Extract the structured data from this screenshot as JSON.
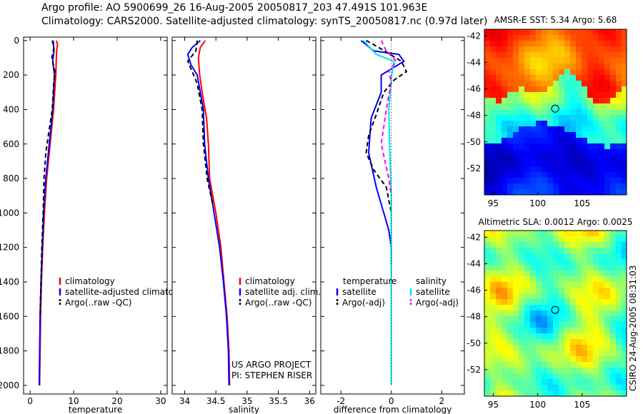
{
  "header": {
    "line1": "Argo profile: AO 5900699_26 16-Aug-2005 20050817_203 47.491S 101.963E",
    "line2": "Climatology: CARS2000. Satellite-adjusted climatology: synTS_20050817.nc (0.97d later)"
  },
  "colors": {
    "red": "#ff0000",
    "blue": "#0000ff",
    "black": "#000000",
    "cyan": "#00e5e5",
    "magenta": "#ff00ff"
  },
  "chart_data": [
    {
      "type": "line",
      "name": "temperature",
      "xlabel": "temperature",
      "ylabel": "",
      "xlim": [
        -1.5,
        31.5
      ],
      "ylim": [
        2050,
        -20
      ],
      "xticks": [
        0,
        10,
        20,
        30
      ],
      "yticks": [
        0,
        200,
        400,
        600,
        800,
        1000,
        1200,
        1400,
        1600,
        1800,
        2000
      ],
      "legend": [
        "climatology",
        "satellite-adjusted climatology",
        "Argo(..raw -QC)"
      ],
      "series": [
        {
          "name": "climatology",
          "color": "red",
          "dash": "",
          "points": [
            [
              6.0,
              0
            ],
            [
              6.3,
              20
            ],
            [
              6.1,
              60
            ],
            [
              6.0,
              120
            ],
            [
              5.9,
              200
            ],
            [
              5.4,
              400
            ],
            [
              4.6,
              600
            ],
            [
              3.8,
              800
            ],
            [
              3.3,
              1000
            ],
            [
              2.9,
              1200
            ],
            [
              2.6,
              1400
            ],
            [
              2.4,
              1600
            ],
            [
              2.3,
              1800
            ],
            [
              2.2,
              2000
            ]
          ]
        },
        {
          "name": "satellite",
          "color": "blue",
          "dash": "",
          "points": [
            [
              5.3,
              0
            ],
            [
              5.5,
              60
            ],
            [
              5.2,
              120
            ],
            [
              5.6,
              200
            ],
            [
              5.2,
              400
            ],
            [
              4.4,
              600
            ],
            [
              3.6,
              800
            ],
            [
              3.1,
              1000
            ],
            [
              2.8,
              1200
            ],
            [
              2.5,
              1400
            ],
            [
              2.3,
              1600
            ],
            [
              2.2,
              1800
            ],
            [
              2.1,
              2000
            ]
          ]
        },
        {
          "name": "argo",
          "color": "black",
          "dash": "6,4",
          "points": [
            [
              5.1,
              0
            ],
            [
              5.5,
              40
            ],
            [
              5.0,
              100
            ],
            [
              5.7,
              180
            ],
            [
              5.4,
              260
            ],
            [
              5.1,
              400
            ],
            [
              4.5,
              500
            ],
            [
              3.6,
              650
            ],
            [
              3.2,
              800
            ],
            [
              3.0,
              1000
            ],
            [
              2.7,
              1200
            ],
            [
              2.5,
              1400
            ],
            [
              2.3,
              1600
            ]
          ]
        }
      ]
    },
    {
      "type": "line",
      "name": "salinity",
      "xlabel": "salinity",
      "ylabel": "",
      "xlim": [
        33.8,
        36.1
      ],
      "ylim": [
        2050,
        -20
      ],
      "xticks": [
        34,
        34.5,
        35,
        35.5,
        36
      ],
      "yticks": [],
      "legend": [
        "climatology",
        "satellite adj. clim.",
        "Argo(..raw -QC)"
      ],
      "annotations": [
        "US ARGO PROJECT",
        "PI: STEPHEN RISER"
      ],
      "series": [
        {
          "name": "climatology",
          "color": "red",
          "dash": "",
          "points": [
            [
              34.33,
              0
            ],
            [
              34.25,
              40
            ],
            [
              34.22,
              100
            ],
            [
              34.24,
              200
            ],
            [
              34.28,
              300
            ],
            [
              34.35,
              450
            ],
            [
              34.38,
              600
            ],
            [
              34.4,
              800
            ],
            [
              34.5,
              1000
            ],
            [
              34.58,
              1200
            ],
            [
              34.63,
              1400
            ],
            [
              34.68,
              1600
            ],
            [
              34.71,
              1800
            ],
            [
              34.72,
              2000
            ]
          ]
        },
        {
          "name": "satellite",
          "color": "blue",
          "dash": "",
          "points": [
            [
              34.25,
              0
            ],
            [
              34.12,
              40
            ],
            [
              34.05,
              80
            ],
            [
              34.1,
              140
            ],
            [
              34.2,
              200
            ],
            [
              34.3,
              400
            ],
            [
              34.32,
              600
            ],
            [
              34.38,
              800
            ],
            [
              34.47,
              1000
            ],
            [
              34.56,
              1200
            ],
            [
              34.62,
              1400
            ],
            [
              34.67,
              1600
            ],
            [
              34.7,
              1800
            ],
            [
              34.71,
              2000
            ]
          ]
        },
        {
          "name": "argo",
          "color": "black",
          "dash": "6,4",
          "points": [
            [
              34.2,
              0
            ],
            [
              34.18,
              60
            ],
            [
              34.05,
              120
            ],
            [
              34.12,
              180
            ],
            [
              34.2,
              250
            ],
            [
              34.28,
              400
            ],
            [
              34.3,
              600
            ],
            [
              34.36,
              800
            ],
            [
              34.45,
              950
            ]
          ]
        }
      ]
    },
    {
      "type": "line",
      "name": "difference",
      "xlabel": "difference from climatology",
      "ylabel": "",
      "xlim": [
        -2.8,
        2.9
      ],
      "ylim": [
        2050,
        -20
      ],
      "xticks": [
        -2,
        0,
        2
      ],
      "yticks": [],
      "legend": {
        "col1_title": "temperature",
        "col2_title": "salinity",
        "col1": [
          "satellite",
          "Argo(-adj)"
        ],
        "col2": [
          "satellite",
          "Argo(-adj)"
        ]
      },
      "series": [
        {
          "name": "temp-satellite",
          "color": "blue",
          "dash": "",
          "points": [
            [
              -1.2,
              0
            ],
            [
              -0.7,
              60
            ],
            [
              0.3,
              80
            ],
            [
              0.5,
              120
            ],
            [
              -0.4,
              200
            ],
            [
              -0.4,
              300
            ],
            [
              -0.8,
              450
            ],
            [
              -0.9,
              650
            ],
            [
              -0.6,
              850
            ],
            [
              -0.3,
              1000
            ],
            [
              -0.1,
              1100
            ],
            [
              0,
              1200
            ],
            [
              0,
              1300
            ]
          ]
        },
        {
          "name": "temp-argo",
          "color": "black",
          "dash": "6,4",
          "points": [
            [
              -1.0,
              0
            ],
            [
              -0.5,
              40
            ],
            [
              0.4,
              120
            ],
            [
              0.6,
              180
            ],
            [
              0.1,
              230
            ],
            [
              -0.3,
              300
            ],
            [
              -0.6,
              430
            ],
            [
              -0.9,
              550
            ],
            [
              -1.0,
              650
            ],
            [
              -0.7,
              750
            ],
            [
              -0.2,
              850
            ],
            [
              0,
              1000
            ]
          ]
        },
        {
          "name": "sal-satellite",
          "color": "cyan",
          "dash": "",
          "points": [
            [
              -1.1,
              0
            ],
            [
              -0.6,
              80
            ],
            [
              0.1,
              120
            ],
            [
              0,
              220
            ],
            [
              -0.1,
              400
            ],
            [
              -0.05,
              700
            ],
            [
              0,
              900
            ],
            [
              0,
              1300
            ],
            [
              0,
              2000
            ]
          ]
        },
        {
          "name": "sal-argo",
          "color": "magenta",
          "dash": "6,4",
          "points": [
            [
              -0.4,
              0
            ],
            [
              -0.2,
              60
            ],
            [
              0.2,
              120
            ],
            [
              -0.1,
              180
            ],
            [
              0,
              240
            ],
            [
              -0.2,
              400
            ],
            [
              -0.4,
              600
            ],
            [
              -0.1,
              800
            ],
            [
              0,
              900
            ]
          ]
        },
        {
          "name": "zero-line",
          "color": "black",
          "dash": "1,3",
          "points": [
            [
              0,
              0
            ],
            [
              0,
              2000
            ]
          ]
        }
      ]
    },
    {
      "type": "heatmap",
      "name": "amsr-sst",
      "title": "AMSR-E SST: 5.34  Argo: 5.68",
      "xlim": [
        94,
        110
      ],
      "ylim": [
        -54,
        -41.5
      ],
      "xticks": [
        95,
        100,
        105
      ],
      "yticks": [
        -42,
        -44,
        -46,
        -48,
        -50,
        -52
      ],
      "marker": [
        101.963,
        -47.491
      ]
    },
    {
      "type": "heatmap",
      "name": "altimetric-sla",
      "title": "Altimetric SLA: 0.0012  Argo: 0.0025",
      "xlim": [
        94,
        110
      ],
      "ylim": [
        -54,
        -41.5
      ],
      "xticks": [
        95,
        100,
        105
      ],
      "yticks": [
        -42,
        -44,
        -46,
        -48,
        -50,
        -52
      ],
      "marker": [
        101.963,
        -47.491
      ]
    }
  ],
  "footer": {
    "credit": "CSIRO 24-Aug-2005 08:31:03"
  }
}
